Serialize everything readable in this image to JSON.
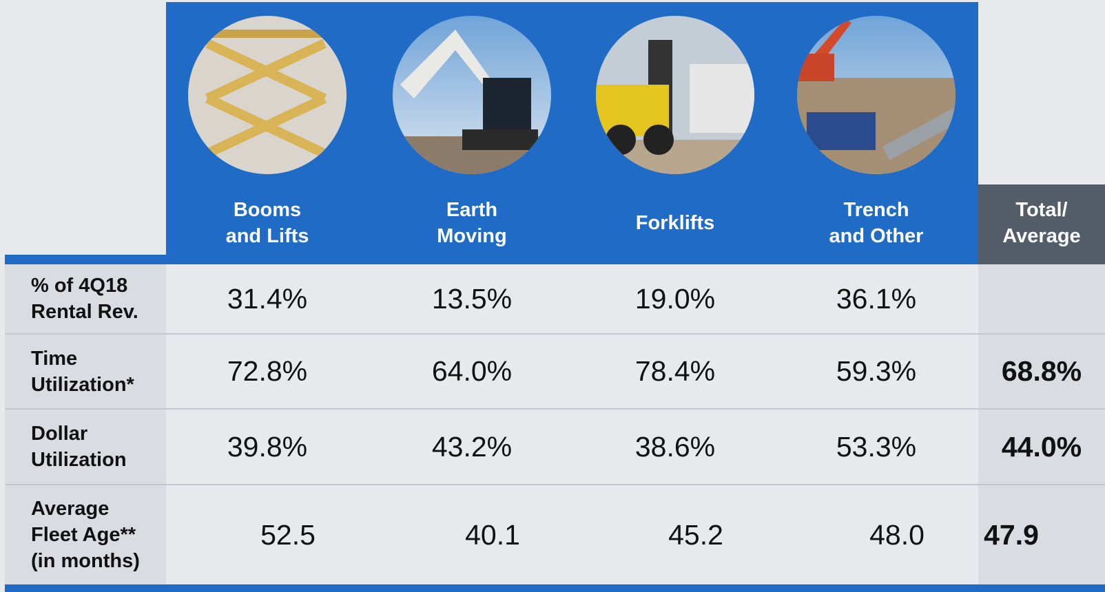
{
  "header": {
    "columns": [
      [
        "Booms",
        "and Lifts"
      ],
      [
        "Earth",
        "Moving"
      ],
      [
        "Forklifts"
      ],
      [
        "Trench",
        "and Other"
      ]
    ],
    "total": [
      "Total/",
      "Average"
    ]
  },
  "table": {
    "rows": [
      {
        "label": [
          "% of 4Q18",
          "Rental Rev."
        ],
        "values": [
          "31.4%",
          "13.5%",
          "19.0%",
          "36.1%"
        ],
        "total": null
      },
      {
        "label": [
          "Time",
          "Utilization*"
        ],
        "values": [
          "72.8%",
          "64.0%",
          "78.4%",
          "59.3%"
        ],
        "total": "68.8%"
      },
      {
        "label": [
          "Dollar",
          "Utilization"
        ],
        "values": [
          "39.8%",
          "43.2%",
          "38.6%",
          "53.3%"
        ],
        "total": "44.0%"
      },
      {
        "label": [
          "Average",
          "Fleet Age**",
          "(in months)"
        ],
        "values": [
          "52.5",
          "40.1",
          "45.2",
          "48.0"
        ],
        "total": "47.9"
      }
    ]
  }
}
